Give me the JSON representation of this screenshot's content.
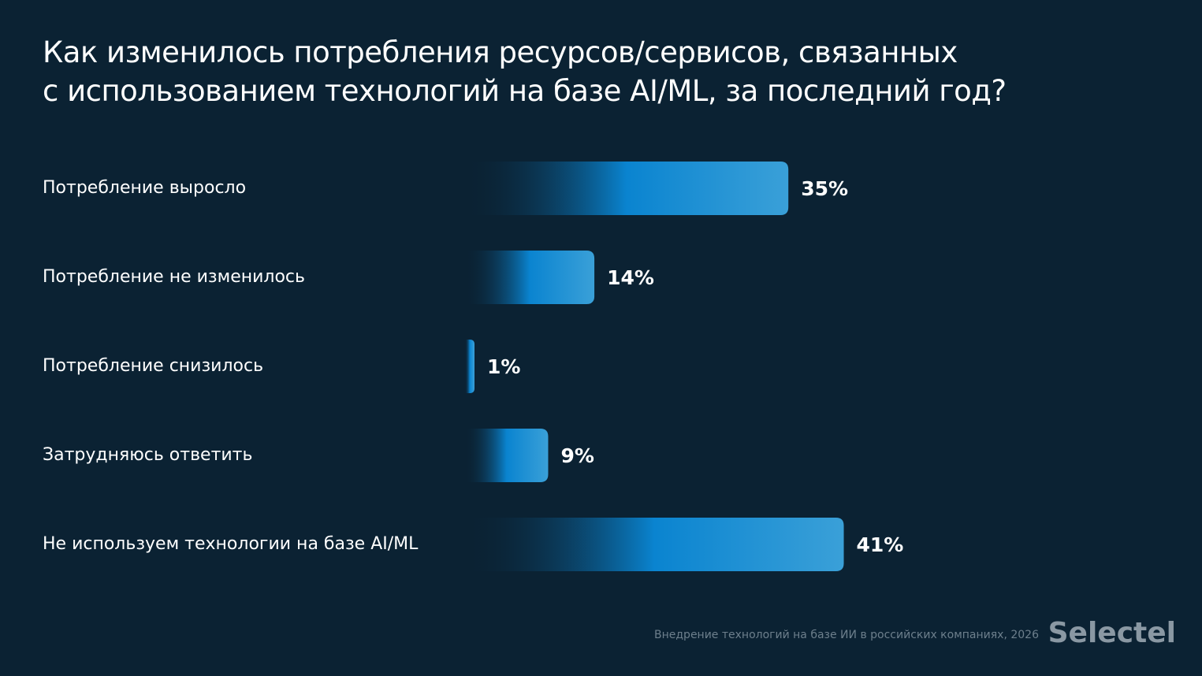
{
  "chart_data": {
    "type": "hbar",
    "title": "Как изменилось потребления ресурсов/сервисов, связанных\nс использованием технологий на базе AI/ML, за последний год?",
    "categories": [
      "Потребление выросло",
      "Потребление не изменилось",
      "Потребление снизилось",
      "Затрудняюсь ответить",
      "Не используем технологии на базе AI/ML"
    ],
    "values": [
      35,
      14,
      1,
      9,
      41
    ],
    "value_labels": [
      "35%",
      "14%",
      "1%",
      "9%",
      "41%"
    ],
    "color": "#0a84d0",
    "source": "Внедрение технологий на базе ИИ в российских компаниях, 2026",
    "logo": "Selectel"
  }
}
